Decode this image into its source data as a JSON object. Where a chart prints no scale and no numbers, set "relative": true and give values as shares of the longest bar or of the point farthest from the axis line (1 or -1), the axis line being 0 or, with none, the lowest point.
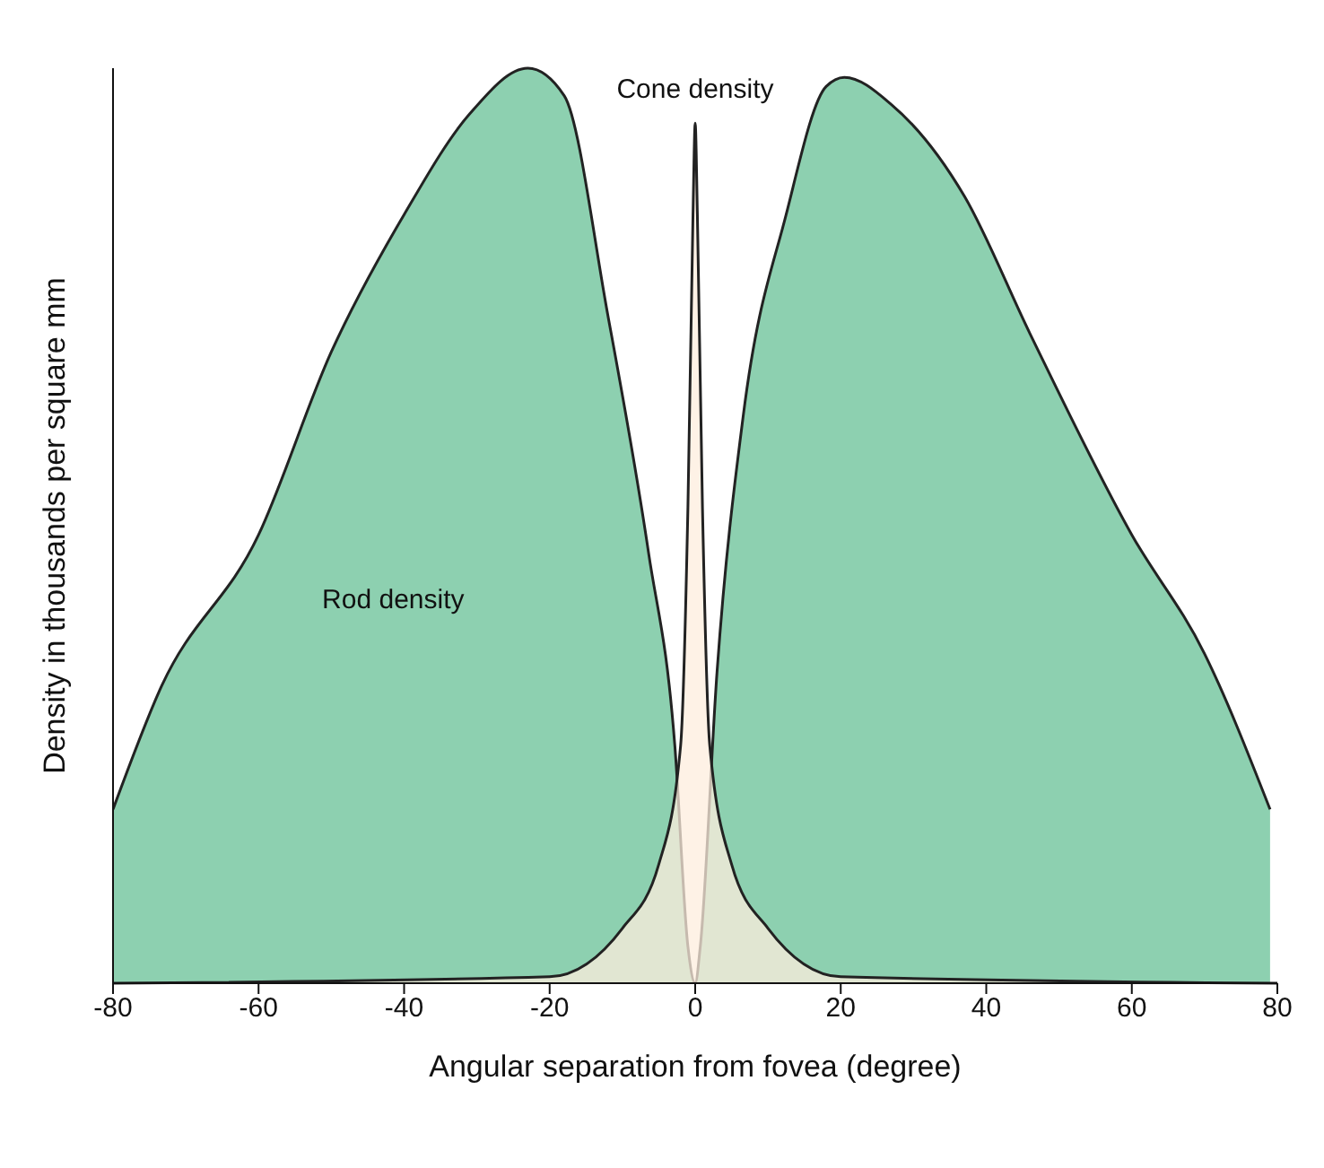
{
  "chart_data": {
    "type": "area",
    "relative": true,
    "xlabel": "Angular separation from fovea (degree)",
    "ylabel": "Density in thousands per square mm",
    "xlim": [
      -80,
      80
    ],
    "xticks": [
      -80,
      -60,
      -40,
      -20,
      0,
      20,
      40,
      60,
      80
    ],
    "grid": false,
    "legend": false,
    "series": [
      {
        "name": "Rod density",
        "color": "#8dd0b0",
        "x": [
          -80,
          -73.6,
          -60,
          -50,
          -40,
          -31,
          -23,
          -18,
          -12,
          -6.4,
          -2.8,
          -1,
          0,
          0.7,
          3,
          6.6,
          12.5,
          18,
          20.5,
          27,
          37,
          46,
          60,
          70,
          79
        ],
        "values": [
          0.19,
          0.32,
          0.49,
          0.69,
          0.84,
          0.95,
          1.0,
          0.97,
          0.73,
          0.47,
          0.26,
          0.04,
          0,
          0.04,
          0.34,
          0.62,
          0.84,
          0.98,
          0.99,
          0.96,
          0.86,
          0.71,
          0.49,
          0.36,
          0.19
        ]
      },
      {
        "name": "Cone density",
        "color": "#fdeede",
        "x": [
          -80,
          -20,
          -10,
          -5,
          -2,
          -1,
          -0.3,
          0,
          0.3,
          1,
          2,
          5,
          10,
          20,
          80
        ],
        "values": [
          0,
          0.007,
          0.06,
          0.13,
          0.26,
          0.52,
          0.84,
          0.94,
          0.84,
          0.52,
          0.26,
          0.13,
          0.06,
          0.007,
          0
        ]
      }
    ]
  }
}
